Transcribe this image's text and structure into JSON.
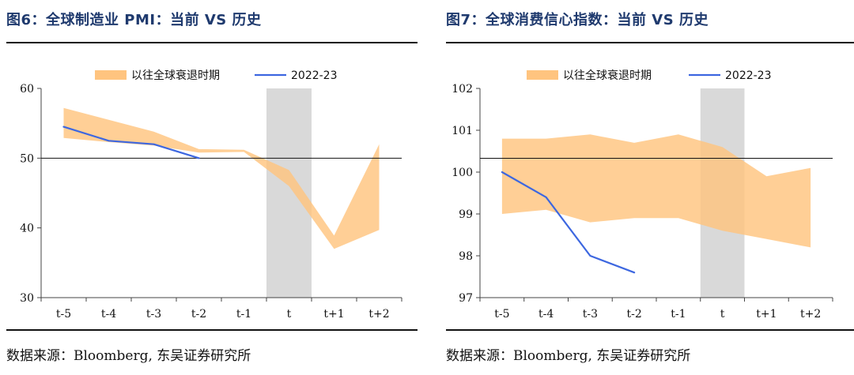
{
  "colors": {
    "band": "#ffc47f",
    "line": "#3d67e0",
    "shade": "#d9d9d9",
    "title": "#1f3a6e"
  },
  "chart_data": [
    {
      "type": "area",
      "title": "图6：全球制造业 PMI：当前 VS 历史",
      "source_label": "数据来源：",
      "source_en": "Bloomberg,",
      "source_cn": " 东吴证券研究所",
      "categories": [
        "t-5",
        "t-4",
        "t-3",
        "t-2",
        "t-1",
        "t",
        "t+1",
        "t+2"
      ],
      "ylim": [
        30,
        60
      ],
      "yticks": [
        30,
        40,
        50,
        60
      ],
      "ytick_labels": [
        "30",
        "40",
        "50",
        "60"
      ],
      "reference_line": 50,
      "shaded_category": "t",
      "legend": [
        "以往全球衰退时期",
        "2022-23"
      ],
      "series": [
        {
          "name": "以往全球衰退时期",
          "kind": "band",
          "upper": [
            57.2,
            55.5,
            53.8,
            51.3,
            51.2,
            48.3,
            38.9,
            52.0
          ],
          "lower": [
            52.9,
            52.3,
            51.8,
            50.8,
            50.9,
            46.0,
            37.0,
            39.7
          ]
        },
        {
          "name": "2022-23",
          "kind": "line",
          "values": [
            54.5,
            52.5,
            52.0,
            50.0,
            null,
            null,
            null,
            null
          ]
        }
      ]
    },
    {
      "type": "area",
      "title": "图7：全球消费信心指数：当前 VS 历史",
      "source_label": "数据来源：",
      "source_en": "Bloomberg,",
      "source_cn": " 东吴证券研究所",
      "categories": [
        "t-5",
        "t-4",
        "t-3",
        "t-2",
        "t-1",
        "t",
        "t+1",
        "t+2"
      ],
      "ylim": [
        97,
        102
      ],
      "yticks": [
        97,
        98,
        99,
        100,
        101,
        102
      ],
      "ytick_labels": [
        "97",
        "98",
        "99",
        "100",
        "101",
        "102"
      ],
      "reference_line": 100.33,
      "shaded_category": "t",
      "legend": [
        "以往全球衰退时期",
        "2022-23"
      ],
      "series": [
        {
          "name": "以往全球衰退时期",
          "kind": "band",
          "upper": [
            100.8,
            100.8,
            100.9,
            100.7,
            100.9,
            100.6,
            99.9,
            100.1
          ],
          "lower": [
            99.0,
            99.1,
            98.8,
            98.9,
            98.9,
            98.6,
            98.4,
            98.2
          ]
        },
        {
          "name": "2022-23",
          "kind": "line",
          "values": [
            100.0,
            99.4,
            98.0,
            97.6,
            null,
            null,
            null,
            null
          ]
        }
      ]
    }
  ]
}
